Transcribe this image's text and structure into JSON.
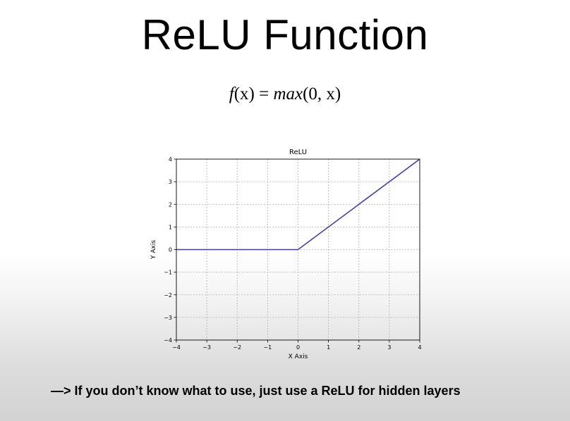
{
  "slide": {
    "title": "ReLU Function",
    "formula": {
      "fx": "f",
      "x_open": "(x) = ",
      "max": "max",
      "args": "(0,  x)"
    },
    "note": "—> If you don’t know what to use, just use a ReLU for hidden layers"
  },
  "chart_data": {
    "type": "line",
    "title": "ReLU",
    "xlabel": "X Axis",
    "ylabel": "Y Axis",
    "xlim": [
      -4,
      4
    ],
    "ylim": [
      -4,
      4
    ],
    "xticks": [
      -4,
      -3,
      -2,
      -1,
      0,
      1,
      2,
      3,
      4
    ],
    "yticks": [
      -4,
      -3,
      -2,
      -1,
      0,
      1,
      2,
      3,
      4
    ],
    "xtick_labels": [
      "−4",
      "−3",
      "−2",
      "−1",
      "0",
      "1",
      "2",
      "3",
      "4"
    ],
    "ytick_labels": [
      "−4",
      "−3",
      "−2",
      "−1",
      "0",
      "1",
      "2",
      "3",
      "4"
    ],
    "grid": true,
    "series": [
      {
        "x": [
          -4,
          0,
          4
        ],
        "y": [
          0,
          0,
          4
        ],
        "color": "#3a3acb"
      }
    ]
  }
}
